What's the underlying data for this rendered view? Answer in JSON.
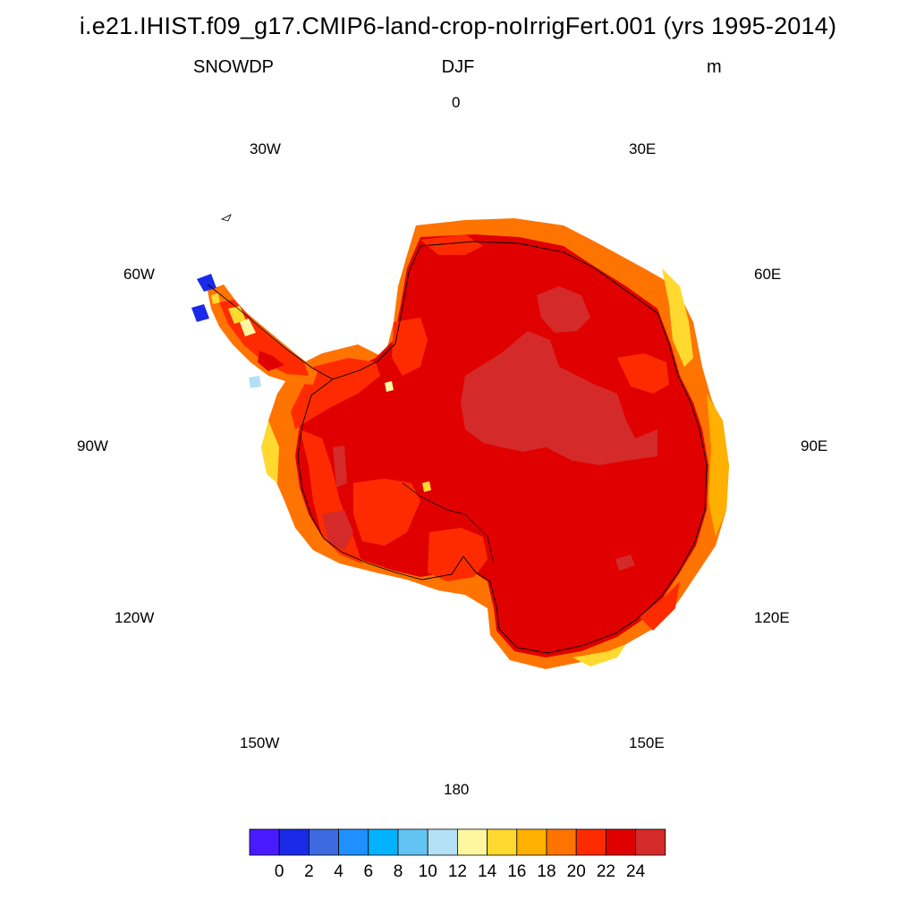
{
  "title": "i.e21.IHIST.f09_g17.CMIP6-land-crop-noIrrigFert.001 (yrs 1995-2014)",
  "variable": "SNOWDP",
  "season": "DJF",
  "units": "m",
  "longitude_labels": {
    "lon_0": "0",
    "lon_30e": "30E",
    "lon_60e": "60E",
    "lon_90e": "90E",
    "lon_120e": "120E",
    "lon_150e": "150E",
    "lon_180": "180",
    "lon_150w": "150W",
    "lon_120w": "120W",
    "lon_90w": "90W",
    "lon_60w": "60W",
    "lon_30w": "30W"
  },
  "colorbar": {
    "colors": [
      "#4a1aff",
      "#1a2ae8",
      "#3d6bdf",
      "#1e90ff",
      "#00b2ff",
      "#63c3f2",
      "#b3e0f5",
      "#fff7a0",
      "#ffd92f",
      "#ffb000",
      "#ff7300",
      "#ff2b00",
      "#e00000",
      "#d42a2a"
    ],
    "labels": [
      "0",
      "2",
      "4",
      "6",
      "8",
      "10",
      "12",
      "14",
      "16",
      "18",
      "20",
      "22",
      "24"
    ]
  },
  "map": {
    "projection": "south-polar-stereographic",
    "region": "Antarctica",
    "dominant_value_range": "22-24+",
    "colors": {
      "deep": "#e00000",
      "top": "#d42a2a",
      "mid": "#ff2b00",
      "orange": "#ff7300",
      "amber": "#ffb000",
      "yellow": "#ffd92f",
      "pale": "#fff7a0",
      "blue": "#1a2ae8",
      "lightblue": "#b3e0f5"
    }
  }
}
